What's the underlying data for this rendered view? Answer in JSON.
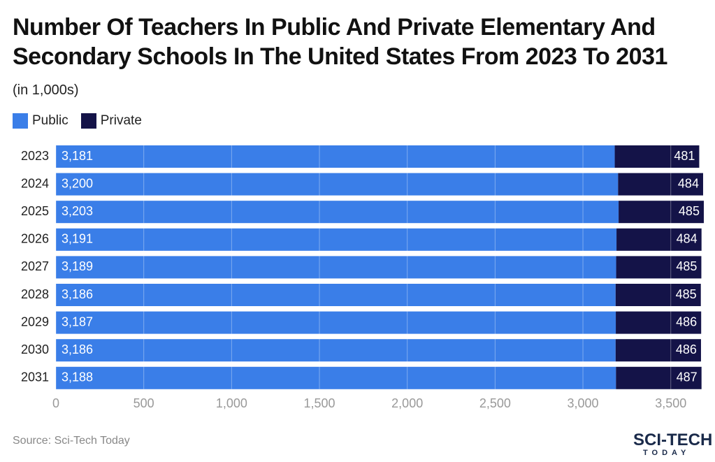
{
  "chart_data": {
    "type": "stacked-bar-horizontal",
    "title": "Number Of Teachers In Public And Private Elementary And Secondary Schools In The United States From 2023 To 2031",
    "subtitle": "(in 1,000s)",
    "categories": [
      "2023",
      "2024",
      "2025",
      "2026",
      "2027",
      "2028",
      "2029",
      "2030",
      "2031"
    ],
    "series": [
      {
        "name": "Public",
        "color": "#3a7ee8",
        "values": [
          3181,
          3200,
          3203,
          3191,
          3189,
          3186,
          3187,
          3186,
          3188
        ],
        "value_labels": [
          "3,181",
          "3,200",
          "3,203",
          "3,191",
          "3,189",
          "3,186",
          "3,187",
          "3,186",
          "3,188"
        ]
      },
      {
        "name": "Private",
        "color": "#141348",
        "values": [
          481,
          484,
          485,
          484,
          485,
          485,
          486,
          486,
          487
        ]
      }
    ],
    "xlim": [
      0,
      3700
    ],
    "xticks": [
      0,
      500,
      {
        "value": 1000,
        "label": "1,000"
      },
      {
        "value": 1500,
        "label": "1,500"
      },
      {
        "value": 2000,
        "label": "2,000"
      },
      {
        "value": 2500,
        "label": "2,500"
      },
      {
        "value": 3000,
        "label": "3,000"
      },
      {
        "value": 3500,
        "label": "3,500"
      }
    ],
    "grid": true,
    "source": "Source: Sci-Tech Today",
    "logo_text": "SCI-TECH",
    "logo_subtext": "TODAY"
  }
}
